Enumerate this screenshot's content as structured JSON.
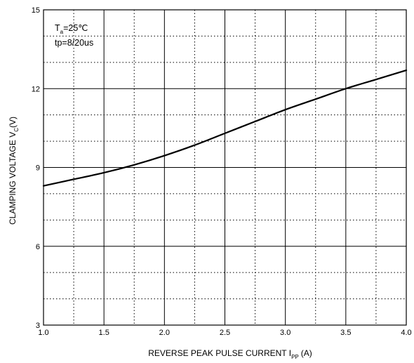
{
  "chart_data": {
    "type": "line",
    "xlabel_main": "REVERSE PEAK PULSE CURRENT  I",
    "xlabel_sub": "PP",
    "xlabel_unit": "(A)",
    "ylabel_main": "CLAMPING VOLTAGE  V",
    "ylabel_sub": "C",
    "ylabel_unit": "(V)",
    "xlim": [
      1.0,
      4.0
    ],
    "ylim": [
      3,
      15
    ],
    "x_ticks": [
      "1.0",
      "1.5",
      "2.0",
      "2.5",
      "3.0",
      "3.5",
      "4.0"
    ],
    "y_ticks": [
      "3",
      "6",
      "9",
      "12",
      "15"
    ],
    "grid": true,
    "annotation": {
      "ta_main": "T",
      "ta_sub": "a",
      "ta_value": "=25℃",
      "tp": "tp=8/20us"
    },
    "series": [
      {
        "x": [
          1.0,
          1.25,
          1.5,
          1.75,
          2.0,
          2.25,
          2.5,
          2.75,
          3.0,
          3.25,
          3.5,
          3.75,
          4.0
        ],
        "y": [
          8.3,
          8.55,
          8.8,
          9.1,
          9.45,
          9.85,
          10.3,
          10.75,
          11.2,
          11.6,
          12.0,
          12.35,
          12.7
        ]
      }
    ]
  }
}
